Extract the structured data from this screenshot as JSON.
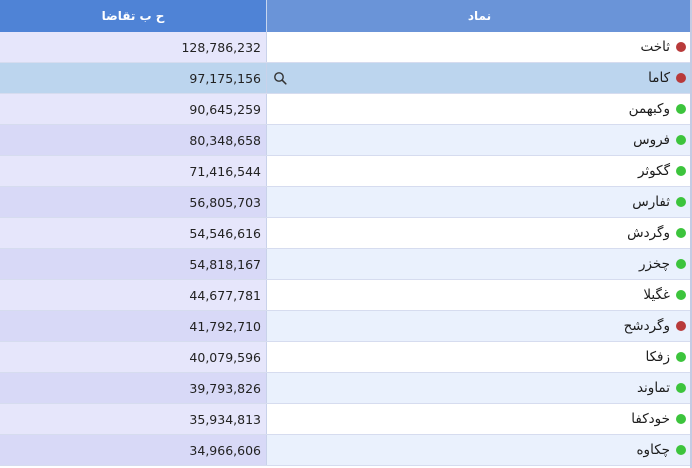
{
  "table": {
    "headers": {
      "value": "ح ب تقاضا",
      "symbol": "نماد"
    },
    "colors": {
      "up": "#3cc43c",
      "down": "#b83a3a"
    },
    "rows": [
      {
        "symbol": "ثاخت",
        "value": "128,786,232",
        "status": "down"
      },
      {
        "symbol": "کاما",
        "value": "97,175,156",
        "status": "down",
        "selected": true
      },
      {
        "symbol": "وکبهمن",
        "value": "90,645,259",
        "status": "up"
      },
      {
        "symbol": "فروس",
        "value": "80,348,658",
        "status": "up"
      },
      {
        "symbol": "گکوثر",
        "value": "71,416,544",
        "status": "up"
      },
      {
        "symbol": "ثفارس",
        "value": "56,805,703",
        "status": "up"
      },
      {
        "symbol": "وگردش",
        "value": "54,546,616",
        "status": "up"
      },
      {
        "symbol": "چخزر",
        "value": "54,818,167",
        "status": "up"
      },
      {
        "symbol": "غگیلا",
        "value": "44,677,781",
        "status": "up"
      },
      {
        "symbol": "وگردشح",
        "value": "41,792,710",
        "status": "down"
      },
      {
        "symbol": "زفکا",
        "value": "40,079,596",
        "status": "up"
      },
      {
        "symbol": "تماوند",
        "value": "39,793,826",
        "status": "up"
      },
      {
        "symbol": "خودکفا",
        "value": "35,934,813",
        "status": "up"
      },
      {
        "symbol": "چکاوه",
        "value": "34,966,606",
        "status": "up"
      }
    ]
  }
}
